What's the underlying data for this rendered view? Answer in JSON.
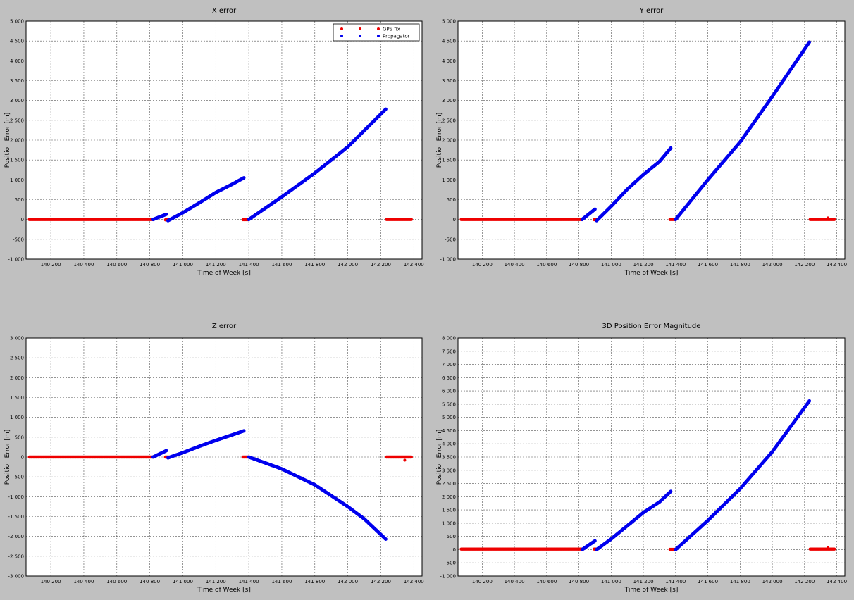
{
  "legend": {
    "gps_label": "GPS fix",
    "propagator_label": "Propagator"
  },
  "colors": {
    "gps": "#ee0000",
    "propagator": "#0000ee",
    "background": "#c0c0c0",
    "plot_background": "#ffffff",
    "grid": "#555555"
  },
  "chart_data": [
    {
      "id": "x",
      "type": "scatter",
      "title": "X error",
      "xlabel": "Time of Week [s]",
      "ylabel": "Position Error [m]",
      "xlim": [
        140050,
        142450
      ],
      "ylim": [
        -1000,
        5000
      ],
      "xticks": [
        140000,
        140200,
        140400,
        140600,
        140800,
        141000,
        141200,
        141400,
        141600,
        141800,
        142000,
        142200,
        142400
      ],
      "xtick_labels": [
        "140 000",
        "140 200",
        "140 400",
        "140 600",
        "140 800",
        "141 000",
        "141 200",
        "141 400",
        "141 600",
        "141 800",
        "142 000",
        "142 200",
        "142 400"
      ],
      "yticks": [
        -1000,
        -500,
        0,
        500,
        1000,
        1500,
        2000,
        2500,
        3000,
        3500,
        4000,
        4500,
        5000
      ],
      "ytick_labels": [
        "-1 000",
        "-500",
        "0",
        "500",
        "1 000",
        "1 500",
        "2 000",
        "2 500",
        "3 000",
        "3 500",
        "4 000",
        "4 500",
        "5 000"
      ],
      "grid": true,
      "legend_position": "top-right",
      "gps_segments": [
        {
          "x_start": 140070,
          "x_end": 140820,
          "value": 0
        },
        {
          "x_start": 140895,
          "x_end": 140915,
          "value": -10
        },
        {
          "x_start": 141365,
          "x_end": 141395,
          "value": -5
        },
        {
          "x_start": 142235,
          "x_end": 142390,
          "value": 0
        }
      ],
      "gps_outliers": [],
      "propagator_arcs": [
        {
          "points": [
            [
              140820,
              0
            ],
            [
              140900,
              130
            ]
          ]
        },
        {
          "points": [
            [
              140910,
              -30
            ],
            [
              141000,
              170
            ],
            [
              141100,
              420
            ],
            [
              141200,
              680
            ],
            [
              141300,
              890
            ],
            [
              141370,
              1050
            ]
          ]
        },
        {
          "points": [
            [
              141400,
              0
            ],
            [
              141600,
              570
            ],
            [
              141800,
              1170
            ],
            [
              142000,
              1830
            ],
            [
              142230,
              2780
            ]
          ]
        }
      ]
    },
    {
      "id": "y",
      "type": "scatter",
      "title": "Y error",
      "xlabel": "Time of Week [s]",
      "ylabel": "Position Error [m]",
      "xlim": [
        140050,
        142450
      ],
      "ylim": [
        -1000,
        5000
      ],
      "xticks": [
        140000,
        140200,
        140400,
        140600,
        140800,
        141000,
        141200,
        141400,
        141600,
        141800,
        142000,
        142200,
        142400
      ],
      "xtick_labels": [
        "140 000",
        "140 200",
        "140 400",
        "140 600",
        "140 800",
        "141 000",
        "141 200",
        "141 400",
        "141 600",
        "141 800",
        "142 000",
        "142 200",
        "142 400"
      ],
      "yticks": [
        -1000,
        -500,
        0,
        500,
        1000,
        1500,
        2000,
        2500,
        3000,
        3500,
        4000,
        4500,
        5000
      ],
      "ytick_labels": [
        "-1 000",
        "-500",
        "0",
        "500",
        "1 000",
        "1 500",
        "2 000",
        "2 500",
        "3 000",
        "3 500",
        "4 000",
        "4 500",
        "5 000"
      ],
      "grid": true,
      "gps_segments": [
        {
          "x_start": 140070,
          "x_end": 140820,
          "value": 0
        },
        {
          "x_start": 140895,
          "x_end": 140915,
          "value": -5
        },
        {
          "x_start": 141365,
          "x_end": 141395,
          "value": 0
        },
        {
          "x_start": 142235,
          "x_end": 142390,
          "value": 0
        }
      ],
      "gps_outliers": [
        [
          142345,
          40
        ]
      ],
      "propagator_arcs": [
        {
          "points": [
            [
              140820,
              0
            ],
            [
              140900,
              260
            ]
          ]
        },
        {
          "points": [
            [
              140910,
              -30
            ],
            [
              141000,
              330
            ],
            [
              141100,
              760
            ],
            [
              141200,
              1130
            ],
            [
              141300,
              1460
            ],
            [
              141370,
              1800
            ]
          ]
        },
        {
          "points": [
            [
              141400,
              0
            ],
            [
              141600,
              1000
            ],
            [
              141800,
              1950
            ],
            [
              142000,
              3100
            ],
            [
              142230,
              4470
            ]
          ]
        }
      ]
    },
    {
      "id": "z",
      "type": "scatter",
      "title": "Z error",
      "xlabel": "Time of Week [s]",
      "ylabel": "Position Error [m]",
      "xlim": [
        140050,
        142450
      ],
      "ylim": [
        -3000,
        3000
      ],
      "xticks": [
        140000,
        140200,
        140400,
        140600,
        140800,
        141000,
        141200,
        141400,
        141600,
        141800,
        142000,
        142200,
        142400
      ],
      "xtick_labels": [
        "140 000",
        "140 200",
        "140 400",
        "140 600",
        "140 800",
        "141 000",
        "141 200",
        "141 400",
        "141 600",
        "141 800",
        "142 000",
        "142 200",
        "142 400"
      ],
      "yticks": [
        -3000,
        -2500,
        -2000,
        -1500,
        -1000,
        -500,
        0,
        500,
        1000,
        1500,
        2000,
        2500,
        3000
      ],
      "ytick_labels": [
        "-3 000",
        "-2 500",
        "-2 000",
        "-1 500",
        "-1 000",
        "-500",
        "0",
        "500",
        "1 000",
        "1 500",
        "2 000",
        "2 500",
        "3 000"
      ],
      "grid": true,
      "gps_segments": [
        {
          "x_start": 140070,
          "x_end": 140820,
          "value": 0
        },
        {
          "x_start": 140895,
          "x_end": 140915,
          "value": 0
        },
        {
          "x_start": 141365,
          "x_end": 141395,
          "value": 0
        },
        {
          "x_start": 142235,
          "x_end": 142390,
          "value": 0
        }
      ],
      "gps_outliers": [
        [
          142345,
          -80
        ]
      ],
      "propagator_arcs": [
        {
          "points": [
            [
              140820,
              0
            ],
            [
              140900,
              160
            ]
          ]
        },
        {
          "points": [
            [
              140910,
              -20
            ],
            [
              141000,
              110
            ],
            [
              141100,
              270
            ],
            [
              141200,
              420
            ],
            [
              141300,
              560
            ],
            [
              141370,
              660
            ]
          ]
        },
        {
          "points": [
            [
              141400,
              0
            ],
            [
              141600,
              -300
            ],
            [
              141800,
              -700
            ],
            [
              142000,
              -1250
            ],
            [
              142100,
              -1560
            ],
            [
              142230,
              -2070
            ]
          ]
        }
      ]
    },
    {
      "id": "mag",
      "type": "scatter",
      "title": "3D Position Error Magnitude",
      "xlabel": "Time of Week [s]",
      "ylabel": "Position Error [m]",
      "xlim": [
        140050,
        142450
      ],
      "ylim": [
        -1000,
        8000
      ],
      "xticks": [
        140000,
        140200,
        140400,
        140600,
        140800,
        141000,
        141200,
        141400,
        141600,
        141800,
        142000,
        142200,
        142400
      ],
      "xtick_labels": [
        "140 000",
        "140 200",
        "140 400",
        "140 600",
        "140 800",
        "141 000",
        "141 200",
        "141 400",
        "141 600",
        "141 800",
        "142 000",
        "142 200",
        "142 400"
      ],
      "yticks": [
        -1000,
        -500,
        0,
        500,
        1000,
        1500,
        2000,
        2500,
        3000,
        3500,
        4000,
        4500,
        5000,
        5500,
        6000,
        6500,
        7000,
        7500,
        8000
      ],
      "ytick_labels": [
        "-1 000",
        "-500",
        "0",
        "500",
        "1 000",
        "1 500",
        "2 000",
        "2 500",
        "3 000",
        "3 500",
        "4 000",
        "4 500",
        "5 000",
        "5 500",
        "6 000",
        "6 500",
        "7 000",
        "7 500",
        "8 000"
      ],
      "grid": true,
      "gps_segments": [
        {
          "x_start": 140070,
          "x_end": 140820,
          "value": 20
        },
        {
          "x_start": 140895,
          "x_end": 140915,
          "value": 20
        },
        {
          "x_start": 141365,
          "x_end": 141395,
          "value": 10
        },
        {
          "x_start": 142235,
          "x_end": 142390,
          "value": 20
        }
      ],
      "gps_outliers": [
        [
          142345,
          90
        ]
      ],
      "propagator_arcs": [
        {
          "points": [
            [
              140820,
              0
            ],
            [
              140900,
              330
            ]
          ]
        },
        {
          "points": [
            [
              140910,
              0
            ],
            [
              141000,
              400
            ],
            [
              141100,
              900
            ],
            [
              141200,
              1400
            ],
            [
              141300,
              1800
            ],
            [
              141370,
              2200
            ]
          ]
        },
        {
          "points": [
            [
              141400,
              0
            ],
            [
              141600,
              1100
            ],
            [
              141800,
              2300
            ],
            [
              142000,
              3700
            ],
            [
              142230,
              5620
            ]
          ]
        }
      ]
    }
  ]
}
